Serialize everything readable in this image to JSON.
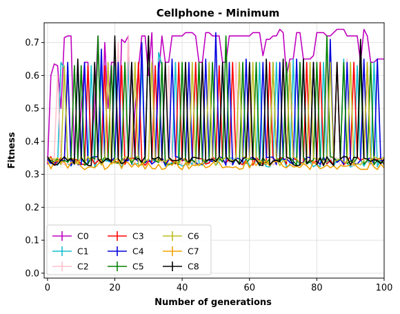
{
  "chart_data": {
    "type": "line",
    "title": "Cellphone - Minimum",
    "xlabel": "Number of generations",
    "ylabel": "Fitness",
    "xlim": [
      -1,
      100
    ],
    "ylim": [
      -0.015,
      0.76
    ],
    "xticks": [
      0,
      20,
      40,
      60,
      80,
      100
    ],
    "yticks": [
      0.0,
      0.1,
      0.2,
      0.3,
      0.4,
      0.5,
      0.6,
      0.7
    ],
    "grid": true,
    "legend_position": "lower-left",
    "legend_columns": 3,
    "base_level": 0.34,
    "series": [
      {
        "name": "C0",
        "color": "#bf00bf",
        "peak_x": [
          1,
          2,
          3,
          4,
          5,
          6,
          7,
          8,
          9,
          10,
          11,
          12,
          13,
          14,
          15,
          17,
          18,
          19,
          20,
          21,
          22,
          23,
          24,
          26,
          27,
          28,
          29,
          30,
          31,
          33,
          34,
          35,
          36,
          37,
          38,
          39,
          40,
          41,
          42,
          43,
          44,
          45,
          46,
          47,
          48,
          49,
          50,
          51,
          52,
          53,
          54,
          55,
          56,
          57,
          58,
          59,
          60,
          61,
          62,
          63,
          64,
          65,
          66,
          67,
          68,
          69,
          70,
          71,
          72,
          73,
          74,
          75,
          76,
          77,
          78,
          79,
          80,
          81,
          82,
          83,
          84,
          85,
          86,
          87,
          88,
          89,
          90,
          91,
          92,
          93,
          94,
          95,
          96,
          97,
          98,
          99,
          100
        ],
        "peak_y": [
          0.6,
          0.635,
          0.63,
          0.5,
          0.715,
          0.72,
          0.72,
          0.34,
          0.34,
          0.5,
          0.64,
          0.64,
          0.34,
          0.5,
          0.72,
          0.7,
          0.5,
          0.64,
          0.64,
          0.34,
          0.71,
          0.7,
          0.72,
          0.5,
          0.62,
          0.72,
          0.72,
          0.6,
          0.73,
          0.6,
          0.72,
          0.64,
          0.64,
          0.72,
          0.72,
          0.72,
          0.72,
          0.73,
          0.73,
          0.73,
          0.72,
          0.64,
          0.64,
          0.73,
          0.73,
          0.72,
          0.72,
          0.72,
          0.64,
          0.64,
          0.72,
          0.72,
          0.72,
          0.72,
          0.72,
          0.72,
          0.72,
          0.73,
          0.73,
          0.73,
          0.66,
          0.71,
          0.71,
          0.72,
          0.72,
          0.74,
          0.73,
          0.6,
          0.65,
          0.65,
          0.73,
          0.73,
          0.65,
          0.65,
          0.65,
          0.66,
          0.73,
          0.73,
          0.73,
          0.72,
          0.72,
          0.73,
          0.74,
          0.74,
          0.74,
          0.72,
          0.72,
          0.72,
          0.72,
          0.64,
          0.74,
          0.72,
          0.64,
          0.64,
          0.65,
          0.65,
          0.65
        ]
      },
      {
        "name": "C1",
        "color": "#17becf",
        "peak_x": [
          4,
          5,
          9,
          13,
          16,
          20,
          24,
          28,
          33,
          34,
          38,
          44,
          52,
          57,
          63,
          68,
          73,
          76,
          82,
          88,
          92,
          97
        ],
        "peak_y": [
          0.64,
          0.62,
          0.63,
          0.63,
          0.64,
          0.63,
          0.64,
          0.64,
          0.67,
          0.63,
          0.64,
          0.64,
          0.63,
          0.64,
          0.64,
          0.64,
          0.65,
          0.64,
          0.64,
          0.65,
          0.63,
          0.64
        ]
      },
      {
        "name": "C2",
        "color": "#ffc0cb",
        "peak_x": [
          3,
          8,
          12,
          17,
          21,
          24,
          27,
          31,
          36,
          41,
          46,
          51,
          56,
          60,
          66,
          70,
          75,
          78,
          83,
          89,
          94,
          98
        ],
        "peak_y": [
          0.6,
          0.63,
          0.62,
          0.63,
          0.7,
          0.72,
          0.64,
          0.65,
          0.63,
          0.64,
          0.62,
          0.63,
          0.64,
          0.6,
          0.64,
          0.63,
          0.64,
          0.63,
          0.64,
          0.65,
          0.64,
          0.63
        ]
      },
      {
        "name": "C3",
        "color": "#ff0000",
        "peak_x": [
          6,
          12,
          17,
          22,
          27,
          32,
          39,
          44,
          51,
          55,
          60,
          66,
          72,
          77,
          81,
          86,
          91,
          95
        ],
        "peak_y": [
          0.63,
          0.63,
          0.63,
          0.63,
          0.64,
          0.63,
          0.64,
          0.64,
          0.63,
          0.64,
          0.63,
          0.64,
          0.64,
          0.64,
          0.64,
          0.64,
          0.64,
          0.64
        ]
      },
      {
        "name": "C4",
        "color": "#0000dd",
        "peak_x": [
          6,
          11,
          16,
          21,
          25,
          28,
          33,
          37,
          42,
          47,
          50,
          54,
          59,
          64,
          69,
          74,
          79,
          84,
          89,
          94,
          98
        ],
        "peak_y": [
          0.64,
          0.64,
          0.68,
          0.64,
          0.64,
          0.7,
          0.64,
          0.65,
          0.64,
          0.65,
          0.73,
          0.64,
          0.65,
          0.64,
          0.64,
          0.65,
          0.64,
          0.71,
          0.64,
          0.65,
          0.65
        ]
      },
      {
        "name": "C5",
        "color": "#008000",
        "peak_x": [
          8,
          10,
          15,
          19,
          23,
          30,
          34,
          40,
          45,
          49,
          53,
          58,
          62,
          67,
          71,
          75,
          80,
          83,
          88,
          93,
          96
        ],
        "peak_y": [
          0.63,
          0.63,
          0.72,
          0.63,
          0.64,
          0.72,
          0.64,
          0.64,
          0.64,
          0.64,
          0.72,
          0.64,
          0.64,
          0.64,
          0.64,
          0.64,
          0.64,
          0.72,
          0.64,
          0.64,
          0.64
        ]
      },
      {
        "name": "C6",
        "color": "#bcbd22",
        "peak_x": [
          5,
          14,
          18,
          26,
          31,
          43,
          48,
          57,
          61,
          67,
          72,
          78,
          84,
          90,
          95
        ],
        "peak_y": [
          0.63,
          0.63,
          0.64,
          0.64,
          0.64,
          0.64,
          0.64,
          0.64,
          0.64,
          0.64,
          0.64,
          0.64,
          0.64,
          0.64,
          0.64
        ]
      },
      {
        "name": "C7",
        "color": "#f0a000",
        "peak_x": [],
        "peak_y": []
      },
      {
        "name": "C8",
        "color": "#000000",
        "peak_x": [
          9,
          14,
          20,
          25,
          30,
          35,
          41,
          46,
          52,
          60,
          65,
          70,
          76,
          79,
          86,
          93
        ],
        "peak_y": [
          0.65,
          0.64,
          0.72,
          0.64,
          0.72,
          0.64,
          0.64,
          0.64,
          0.64,
          0.64,
          0.65,
          0.65,
          0.65,
          0.64,
          0.64,
          0.71
        ]
      }
    ]
  }
}
